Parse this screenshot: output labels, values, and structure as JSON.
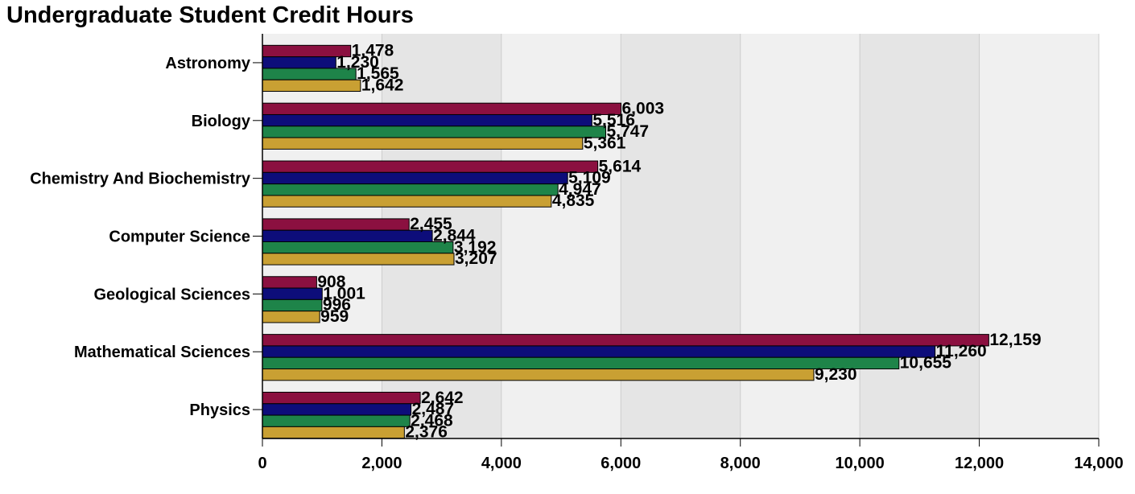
{
  "chart_data": {
    "type": "bar",
    "orientation": "horizontal",
    "title": "Undergraduate Student Credit Hours",
    "xlabel": "",
    "ylabel": "",
    "xlim": [
      0,
      14000
    ],
    "x_ticks": [
      "0",
      "2,000",
      "4,000",
      "6,000",
      "8,000",
      "10,000",
      "12,000",
      "14,000"
    ],
    "grid": true,
    "legend": "none",
    "categories": [
      "Astronomy",
      "Biology",
      "Chemistry And Biochemistry",
      "Computer Science",
      "Geological Sciences",
      "Mathematical Sciences",
      "Physics"
    ],
    "series": [
      {
        "color": "#8b1040",
        "values": [
          1478,
          6003,
          5614,
          2455,
          908,
          12159,
          2642
        ],
        "labels": [
          "1,478",
          "6,003",
          "5,614",
          "2,455",
          "908",
          "12,159",
          "2,642"
        ]
      },
      {
        "color": "#0d0d7a",
        "values": [
          1230,
          5516,
          5109,
          2844,
          1001,
          11260,
          2487
        ],
        "labels": [
          "1,230",
          "5,516",
          "5,109",
          "2,844",
          "1,001",
          "11,260",
          "2,487"
        ]
      },
      {
        "color": "#1e8449",
        "values": [
          1565,
          5747,
          4947,
          3192,
          996,
          10655,
          2468
        ],
        "labels": [
          "1,565",
          "5,747",
          "4,947",
          "3,192",
          "996",
          "10,655",
          "2,468"
        ]
      },
      {
        "color": "#c9a033",
        "values": [
          1642,
          5361,
          4835,
          3207,
          959,
          9230,
          2376
        ],
        "labels": [
          "1,642",
          "5,361",
          "4,835",
          "3,207",
          "959",
          "9,230",
          "2,376"
        ]
      }
    ]
  }
}
